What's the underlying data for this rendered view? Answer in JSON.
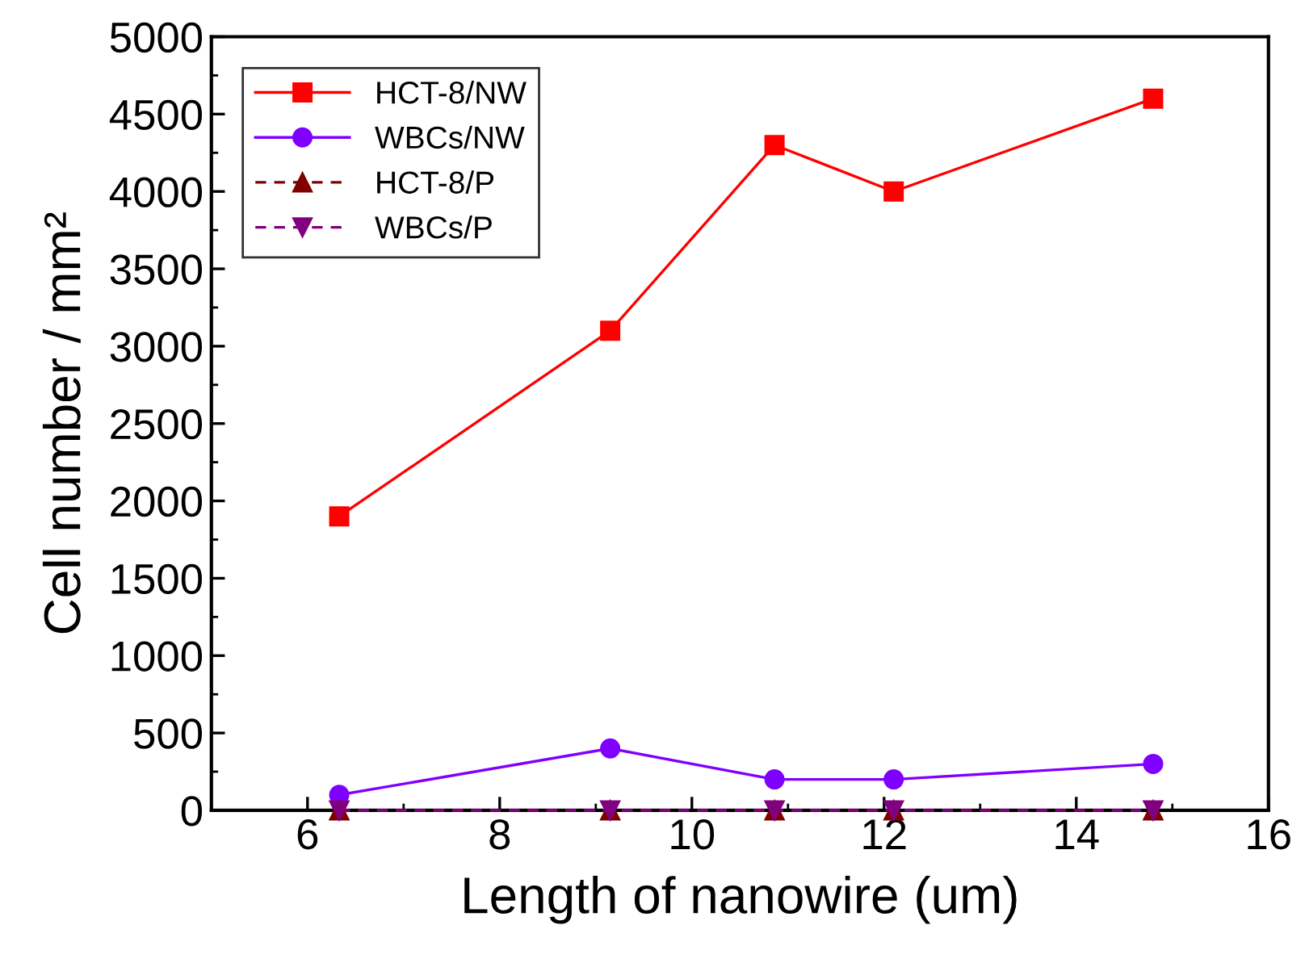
{
  "chart_data": {
    "type": "line",
    "xlabel": "Length of nanowire (um)",
    "ylabel": "Cell number / mm²",
    "x": [
      6.33,
      9.15,
      10.86,
      12.1,
      14.8
    ],
    "series": [
      {
        "name": "HCT-8/NW",
        "color": "#ff0000",
        "marker": "square",
        "line_style": "solid",
        "values": [
          1900,
          3100,
          4300,
          4000,
          4600
        ]
      },
      {
        "name": "WBCs/NW",
        "color": "#8000ff",
        "marker": "circle",
        "line_style": "solid",
        "values": [
          100,
          400,
          200,
          200,
          300
        ]
      },
      {
        "name": "HCT-8/P",
        "color": "#800000",
        "marker": "triangle",
        "line_style": "dashed",
        "values": [
          0,
          0,
          0,
          0,
          0
        ]
      },
      {
        "name": "WBCs/P",
        "color": "#800080",
        "marker": "triangle-down",
        "line_style": "dashed",
        "values": [
          0,
          0,
          0,
          0,
          0
        ]
      }
    ],
    "xlim": [
      5,
      16
    ],
    "xticks": [
      6,
      8,
      10,
      12,
      14,
      16
    ],
    "ylim": [
      0,
      5000
    ],
    "yticks": [
      0,
      500,
      1000,
      1500,
      2000,
      2500,
      3000,
      3500,
      4000,
      4500,
      5000
    ],
    "grid": false,
    "legend": "top left"
  }
}
